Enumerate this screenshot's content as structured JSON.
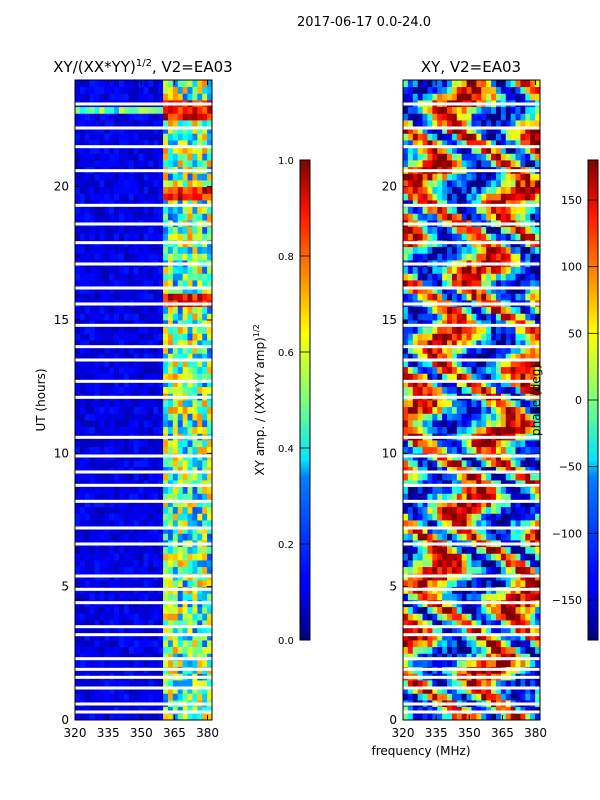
{
  "suptitle": "2017-06-17 0.0-24.0",
  "xlabel": "frequency (MHz)",
  "chart_data": [
    {
      "type": "heatmap",
      "title_main": "XY/(XX*YY)",
      "title_sup": "1/2",
      "title_rest": ", V2=EA03",
      "ylabel": "UT (hours)",
      "x_ticks": [
        320,
        335,
        350,
        365,
        380
      ],
      "x_range": [
        320,
        382
      ],
      "y_ticks": [
        0,
        5,
        10,
        15,
        20
      ],
      "y_range": [
        0,
        24
      ],
      "colormap": "jet",
      "colorbar": {
        "label_main": "XY amp. / (XX*YY amp)",
        "label_sup": "1/2",
        "ticks": [
          "0.0",
          "0.2",
          "0.4",
          "0.6",
          "0.8",
          "1.0"
        ],
        "tick_values": [
          0.0,
          0.2,
          0.4,
          0.6,
          0.8,
          1.0
        ],
        "range": [
          0.0,
          1.0
        ]
      },
      "bright_band_mhz": [
        360,
        382
      ],
      "data_gaps_ut": [
        0.3,
        0.6,
        1.2,
        1.6,
        1.9,
        2.3,
        3.2,
        3.5,
        4.4,
        4.9,
        5.4,
        6.6,
        7.2,
        8.2,
        8.8,
        9.3,
        9.9,
        10.6,
        12.1,
        12.7,
        13.5,
        14.0,
        14.8,
        15.6,
        16.2,
        17.1,
        17.9,
        18.6,
        19.3,
        20.6,
        21.5,
        22.2,
        23.1
      ]
    },
    {
      "type": "heatmap",
      "title": "XY, V2=EA03",
      "x_ticks": [
        320,
        335,
        350,
        365,
        380
      ],
      "x_range": [
        320,
        382
      ],
      "y_ticks": [
        0,
        5,
        10,
        15,
        20
      ],
      "y_range": [
        0,
        24
      ],
      "colormap": "jet",
      "colorbar": {
        "label": "phase (deg)",
        "ticks": [
          "150",
          "100",
          "50",
          "0",
          "−50",
          "−100",
          "−150"
        ],
        "tick_values": [
          150,
          100,
          50,
          0,
          -50,
          -100,
          -150
        ],
        "range": [
          -180,
          180
        ]
      },
      "data_gaps_ut": [
        0.3,
        0.6,
        1.2,
        1.6,
        1.9,
        2.3,
        3.2,
        3.5,
        4.4,
        4.9,
        5.4,
        6.6,
        7.2,
        8.2,
        8.8,
        9.3,
        9.9,
        10.6,
        12.1,
        12.7,
        13.5,
        14.0,
        14.8,
        15.6,
        16.2,
        17.1,
        17.9,
        18.6,
        19.3,
        20.6,
        21.5,
        22.2,
        23.1
      ]
    }
  ]
}
